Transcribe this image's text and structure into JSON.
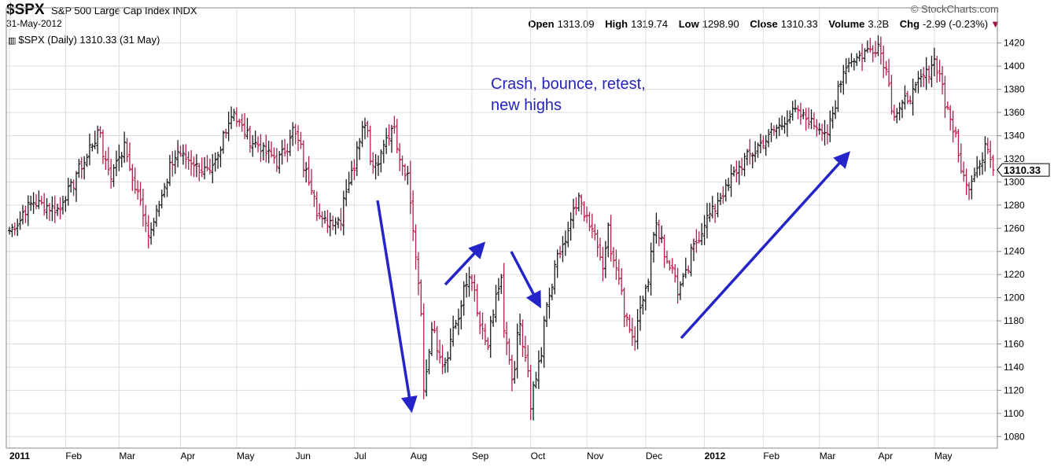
{
  "header": {
    "symbol": "$SPX",
    "description": "S&P 500 Large Cap Index  INDX",
    "date": "31-May-2012",
    "credit": "© StockCharts.com",
    "open_label": "Open",
    "open": "1313.09",
    "high_label": "High",
    "high": "1319.74",
    "low_label": "Low",
    "low": "1298.90",
    "close_label": "Close",
    "close": "1310.33",
    "volume_label": "Volume",
    "volume": "3.2B",
    "chg_label": "Chg",
    "chg": "-2.99 (-0.23%)"
  },
  "legend": {
    "text": "$SPX (Daily) 1310.33 (31 May)"
  },
  "colors": {
    "up": "#1a1a1a",
    "down": "#b0204a",
    "arrow": "#2424c8",
    "grid": "#dcdcdc",
    "annotation": "#2424b8"
  },
  "annotation": "Crash, bounce, retest,\nnew highs",
  "chart_data": {
    "type": "ohlc",
    "title": "$SPX (Daily) 1310.33 (31 May)",
    "ylim": [
      1070,
      1430
    ],
    "yticks": [
      1080,
      1100,
      1120,
      1140,
      1160,
      1180,
      1200,
      1220,
      1240,
      1260,
      1280,
      1300,
      1320,
      1340,
      1360,
      1380,
      1400,
      1420
    ],
    "last_value_label": "1310.33",
    "last_value": 1310.33,
    "grid": true,
    "month_labels": [
      "2011",
      "Feb",
      "Mar",
      "Apr",
      "May",
      "Jun",
      "Jul",
      "Aug",
      "Sep",
      "Oct",
      "Nov",
      "Dec",
      "2012",
      "Feb",
      "Mar",
      "Apr",
      "May"
    ],
    "series": [
      {
        "anchors": [
          {
            "date": "2011-01-03",
            "value": 1258
          },
          {
            "date": "2011-01-14",
            "value": 1283
          },
          {
            "date": "2011-01-28",
            "value": 1276
          },
          {
            "date": "2011-02-18",
            "value": 1343
          },
          {
            "date": "2011-02-24",
            "value": 1306
          },
          {
            "date": "2011-03-03",
            "value": 1330
          },
          {
            "date": "2011-03-16",
            "value": 1257
          },
          {
            "date": "2011-03-31",
            "value": 1326
          },
          {
            "date": "2011-04-18",
            "value": 1305
          },
          {
            "date": "2011-04-29",
            "value": 1363
          },
          {
            "date": "2011-05-06",
            "value": 1340
          },
          {
            "date": "2011-05-23",
            "value": 1317
          },
          {
            "date": "2011-05-31",
            "value": 1345
          },
          {
            "date": "2011-06-15",
            "value": 1265
          },
          {
            "date": "2011-06-24",
            "value": 1268
          },
          {
            "date": "2011-07-07",
            "value": 1353
          },
          {
            "date": "2011-07-12",
            "value": 1314
          },
          {
            "date": "2011-07-22",
            "value": 1345
          },
          {
            "date": "2011-08-01",
            "value": 1286
          },
          {
            "date": "2011-08-08",
            "value": 1119
          },
          {
            "date": "2011-08-11",
            "value": 1172
          },
          {
            "date": "2011-08-18",
            "value": 1140
          },
          {
            "date": "2011-08-31",
            "value": 1218
          },
          {
            "date": "2011-09-09",
            "value": 1154
          },
          {
            "date": "2011-09-16",
            "value": 1216
          },
          {
            "date": "2011-09-22",
            "value": 1129
          },
          {
            "date": "2011-09-27",
            "value": 1175
          },
          {
            "date": "2011-10-03",
            "value": 1099
          },
          {
            "date": "2011-10-04",
            "value": 1123
          },
          {
            "date": "2011-10-14",
            "value": 1224
          },
          {
            "date": "2011-10-27",
            "value": 1284
          },
          {
            "date": "2011-11-03",
            "value": 1261
          },
          {
            "date": "2011-11-09",
            "value": 1229
          },
          {
            "date": "2011-11-11",
            "value": 1263
          },
          {
            "date": "2011-11-25",
            "value": 1158
          },
          {
            "date": "2011-12-07",
            "value": 1261
          },
          {
            "date": "2011-12-19",
            "value": 1205
          },
          {
            "date": "2011-12-30",
            "value": 1258
          },
          {
            "date": "2012-01-20",
            "value": 1315
          },
          {
            "date": "2012-02-17",
            "value": 1361
          },
          {
            "date": "2012-03-06",
            "value": 1343
          },
          {
            "date": "2012-03-15",
            "value": 1402
          },
          {
            "date": "2012-04-02",
            "value": 1419
          },
          {
            "date": "2012-04-10",
            "value": 1358
          },
          {
            "date": "2012-04-20",
            "value": 1379
          },
          {
            "date": "2012-05-01",
            "value": 1405
          },
          {
            "date": "2012-05-18",
            "value": 1295
          },
          {
            "date": "2012-05-29",
            "value": 1332
          },
          {
            "date": "2012-05-31",
            "value": 1310
          }
        ]
      }
    ]
  }
}
